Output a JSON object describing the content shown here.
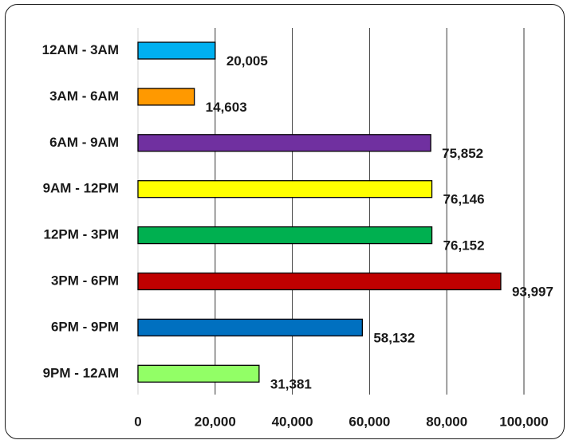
{
  "chart_data": {
    "type": "bar",
    "orientation": "horizontal",
    "title": "",
    "xlabel": "",
    "ylabel": "",
    "categories": [
      "12AM - 3AM",
      "3AM - 6AM",
      "6AM - 9AM",
      "9AM - 12PM",
      "12PM - 3PM",
      "3PM - 6PM",
      "6PM - 9PM",
      "9PM - 12AM"
    ],
    "values": [
      20005,
      14603,
      75852,
      76146,
      76152,
      93997,
      58132,
      31381
    ],
    "data_labels": [
      "20,005",
      "14,603",
      "75,852",
      "76,146",
      "76,152",
      "93,997",
      "58,132",
      "31,381"
    ],
    "colors": [
      "#00b0f0",
      "#ff9900",
      "#7030a0",
      "#ffff00",
      "#00b050",
      "#c00000",
      "#0070c0",
      "#92ff66"
    ],
    "xlim": [
      0,
      100000
    ],
    "x_ticks": [
      0,
      20000,
      40000,
      60000,
      80000,
      100000
    ],
    "x_tick_labels": [
      "0",
      "20,000",
      "40,000",
      "60,000",
      "80,000",
      "100,000"
    ],
    "grid": "vertical",
    "legend": "none"
  }
}
